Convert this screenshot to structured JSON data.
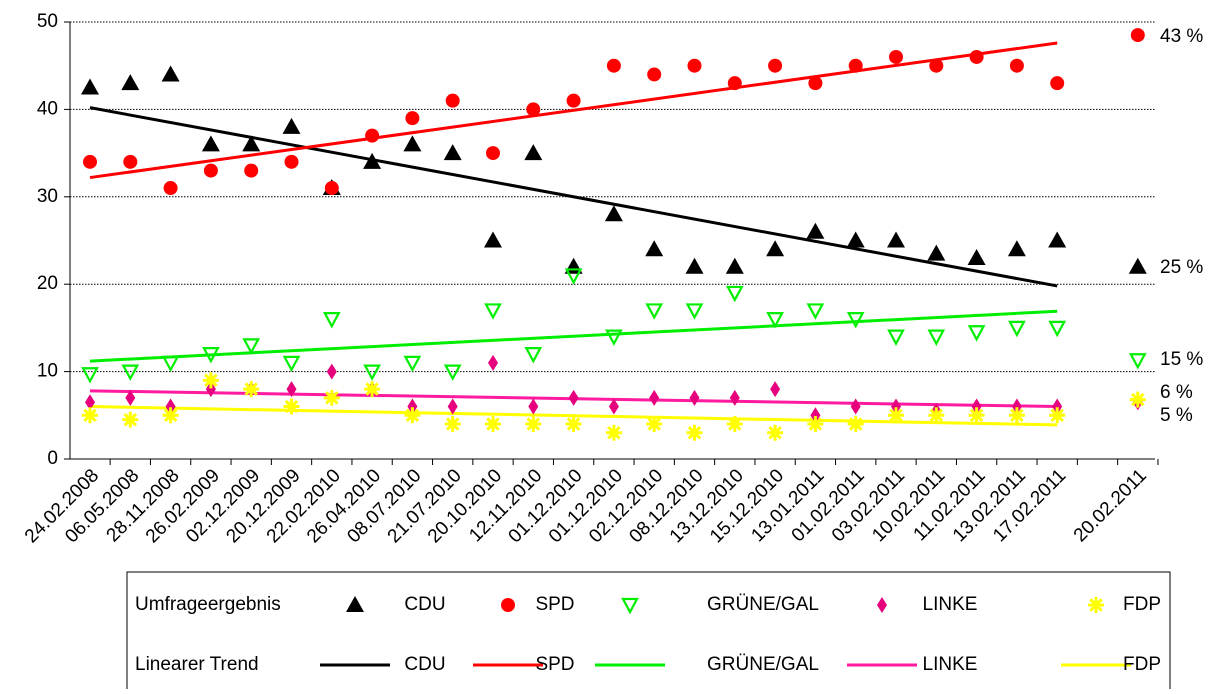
{
  "chart_data": {
    "type": "scatter-trend",
    "categories": [
      "24.02.2008",
      "06.05.2008",
      "28.11.2008",
      "26.02.2009",
      "02.12.2009",
      "20.12.2009",
      "22.02.2010",
      "26.04.2010",
      "08.07.2010",
      "21.07.2010",
      "20.10.2010",
      "12.11.2010",
      "01.12.2010",
      "01.12.2010",
      "02.12.2010",
      "08.12.2010",
      "13.12.2010",
      "15.12.2010",
      "13.01.2011",
      "01.02.2011",
      "03.02.2011",
      "10.02.2011",
      "11.02.2011",
      "13.02.2011",
      "17.02.2011",
      null,
      "20.02.2011"
    ],
    "ylim": [
      0,
      50
    ],
    "yticks": [
      0,
      10,
      20,
      30,
      40,
      50
    ],
    "grid": true,
    "legend_rows": [
      "Umfrageergebnis",
      "Linearer Trend"
    ],
    "series": [
      {
        "name": "CDU",
        "color": "#000000",
        "marker": "triangle-up",
        "values": [
          42.5,
          43,
          44,
          36,
          36,
          38,
          31,
          34,
          36,
          35,
          25,
          35,
          22,
          28,
          24,
          22,
          22,
          24,
          26,
          25,
          25,
          23.5,
          23,
          24,
          25,
          null,
          22
        ],
        "trend": [
          40.2,
          19.8
        ],
        "trend_color": "#000000"
      },
      {
        "name": "SPD",
        "color": "#ff0000",
        "marker": "circle",
        "values": [
          34,
          34,
          31,
          33,
          33,
          34,
          31,
          37,
          39,
          41,
          35,
          40,
          41,
          45,
          44,
          45,
          43,
          45,
          43,
          45,
          46,
          45,
          46,
          45,
          43,
          null,
          48.5
        ],
        "trend": [
          32.2,
          47.6
        ],
        "trend_color": "#ff0000"
      },
      {
        "name": "GRÜNE/GAL",
        "color": "#00ee00",
        "marker": "triangle-down",
        "values": [
          9.7,
          10,
          11,
          12,
          13,
          11,
          16,
          10,
          11,
          10,
          17,
          12,
          21,
          14,
          17,
          17,
          19,
          16,
          17,
          16,
          14,
          14,
          14.5,
          15,
          15,
          null,
          11.3
        ],
        "trend": [
          11.2,
          16.9
        ],
        "trend_color": "#00ee00"
      },
      {
        "name": "LINKE",
        "color": "#e6007e",
        "marker": "diamond",
        "values": [
          6.5,
          7,
          6,
          8,
          8,
          8,
          10,
          8,
          6,
          6,
          11,
          6,
          7,
          6,
          7,
          7,
          7,
          8,
          5,
          6,
          6,
          5.5,
          6,
          6,
          6,
          null,
          6.5
        ],
        "trend": [
          7.8,
          6.0
        ],
        "trend_color": "#ff1aa0"
      },
      {
        "name": "FDP",
        "color": "#ffff00",
        "marker": "asterisk",
        "values": [
          5,
          4.5,
          5,
          9,
          8,
          6,
          7,
          8,
          5,
          4,
          4,
          4,
          4,
          3,
          4,
          3,
          4,
          3,
          4,
          4,
          5,
          5,
          5,
          5,
          5,
          null,
          6.8
        ],
        "trend": [
          6.0,
          3.9
        ],
        "trend_color": "#ffff00"
      }
    ],
    "annotations": [
      "43 %",
      "25 %",
      "15 %",
      "6 %",
      "5 %"
    ]
  }
}
